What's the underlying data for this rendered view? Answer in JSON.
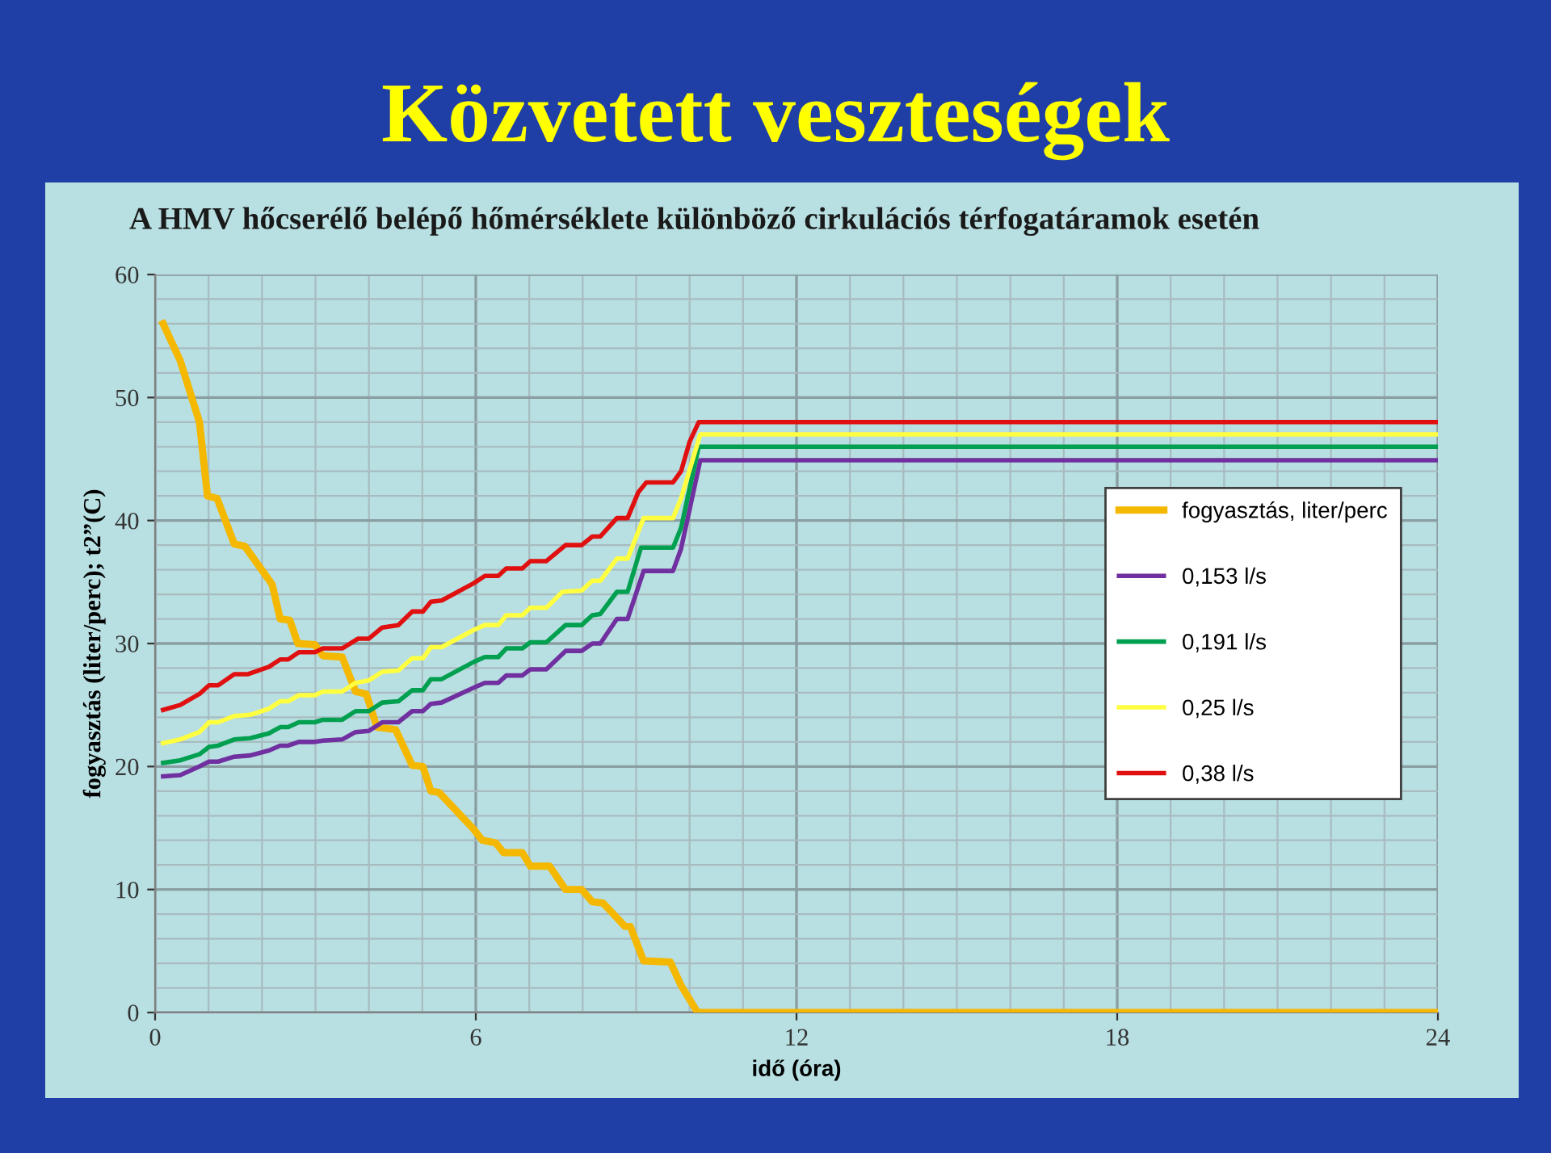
{
  "chart_data": {
    "type": "line",
    "title": "Közvetett veszteségek",
    "subtitle": "A HMV hőcserélő belépő hőmérséklete különböző cirkulációs térfogatáramok esetén",
    "xlabel": "idő (óra)",
    "ylabel": "fogyasztás (liter/perc); t2”(C)",
    "xlim": [
      0,
      24
    ],
    "xticks": [
      0,
      6,
      12,
      18,
      24
    ],
    "ylim": [
      0,
      60
    ],
    "yticks": [
      0,
      10,
      20,
      30,
      40,
      50,
      60
    ],
    "grid": true,
    "legend": "right",
    "marker": "none",
    "line_style": "solid",
    "series": [
      {
        "name": "fogyasztás, liter/perc",
        "color": "#f5b800",
        "x": [
          0.15,
          0.47,
          0.83,
          0.98,
          1.16,
          1.48,
          1.68,
          2.19,
          2.34,
          2.52,
          2.67,
          2.99,
          3.14,
          3.5,
          3.75,
          3.95,
          4.15,
          4.5,
          4.81,
          5.01,
          5.16,
          5.31,
          5.96,
          6.12,
          6.37,
          6.52,
          6.87,
          7.02,
          7.38,
          7.68,
          7.98,
          8.18,
          8.38,
          8.79,
          8.89,
          9.14,
          9.64,
          9.84,
          10.15,
          24
        ],
        "values": [
          56.0,
          53.0,
          48.0,
          42.0,
          41.8,
          38.1,
          37.9,
          34.8,
          32.0,
          31.9,
          30.0,
          29.9,
          29.0,
          28.9,
          26.1,
          25.9,
          23.2,
          23.0,
          20.1,
          20.0,
          18.0,
          17.9,
          14.9,
          14.0,
          13.8,
          13.0,
          13.0,
          11.9,
          11.9,
          10.0,
          10.0,
          9.0,
          8.9,
          7.0,
          7.0,
          4.2,
          4.1,
          2.2,
          0,
          0
        ]
      },
      {
        "name": "0,153 l/s",
        "color": "#7030a0",
        "x": [
          0.15,
          0.47,
          0.83,
          1.01,
          1.18,
          1.48,
          1.78,
          2.13,
          2.34,
          2.49,
          2.69,
          2.99,
          3.14,
          3.5,
          3.75,
          4.0,
          4.25,
          4.55,
          4.81,
          5.01,
          5.16,
          5.36,
          5.96,
          6.17,
          6.42,
          6.57,
          6.87,
          7.02,
          7.32,
          7.68,
          7.98,
          8.18,
          8.33,
          8.64,
          8.84,
          9.14,
          9.69,
          9.84,
          10.2,
          24
        ],
        "values": [
          19.2,
          19.3,
          20.0,
          20.4,
          20.4,
          20.8,
          20.9,
          21.3,
          21.7,
          21.7,
          22.0,
          22.0,
          22.1,
          22.2,
          22.8,
          22.9,
          23.6,
          23.6,
          24.5,
          24.5,
          25.1,
          25.2,
          26.4,
          26.8,
          26.8,
          27.4,
          27.4,
          27.9,
          27.9,
          29.4,
          29.4,
          30.0,
          30.0,
          32.0,
          32.0,
          35.9,
          35.9,
          37.7,
          44.9,
          44.9
        ]
      },
      {
        "name": "0,191 l/s",
        "color": "#00a050",
        "x": [
          0.15,
          0.47,
          0.83,
          1.01,
          1.18,
          1.48,
          1.78,
          2.13,
          2.34,
          2.49,
          2.69,
          2.99,
          3.14,
          3.5,
          3.75,
          4.0,
          4.25,
          4.55,
          4.81,
          5.01,
          5.16,
          5.36,
          5.96,
          6.17,
          6.42,
          6.57,
          6.87,
          7.02,
          7.32,
          7.68,
          7.98,
          8.18,
          8.33,
          8.64,
          8.84,
          9.09,
          9.69,
          9.84,
          10.17,
          24
        ],
        "values": [
          20.3,
          20.5,
          21.0,
          21.6,
          21.7,
          22.2,
          22.3,
          22.7,
          23.2,
          23.2,
          23.6,
          23.6,
          23.8,
          23.8,
          24.5,
          24.5,
          25.2,
          25.3,
          26.2,
          26.2,
          27.1,
          27.1,
          28.5,
          28.9,
          28.9,
          29.6,
          29.6,
          30.1,
          30.1,
          31.5,
          31.5,
          32.3,
          32.4,
          34.2,
          34.2,
          37.8,
          37.8,
          39.4,
          46.0,
          46.0
        ]
      },
      {
        "name": "0,25 l/s",
        "color": "#ffff40",
        "x": [
          0.15,
          0.47,
          0.83,
          1.01,
          1.18,
          1.48,
          1.78,
          2.13,
          2.34,
          2.49,
          2.69,
          2.99,
          3.14,
          3.5,
          3.75,
          4.0,
          4.25,
          4.55,
          4.81,
          5.01,
          5.16,
          5.36,
          5.96,
          6.17,
          6.42,
          6.57,
          6.87,
          7.02,
          7.32,
          7.62,
          7.98,
          8.18,
          8.33,
          8.64,
          8.84,
          9.14,
          9.69,
          9.84,
          10.2,
          24
        ],
        "values": [
          21.9,
          22.2,
          22.8,
          23.6,
          23.6,
          24.1,
          24.2,
          24.7,
          25.3,
          25.3,
          25.8,
          25.8,
          26.1,
          26.1,
          26.8,
          27.0,
          27.7,
          27.8,
          28.8,
          28.8,
          29.7,
          29.7,
          31.1,
          31.5,
          31.5,
          32.3,
          32.3,
          32.9,
          32.9,
          34.2,
          34.3,
          35.1,
          35.1,
          36.9,
          36.9,
          40.2,
          40.2,
          41.8,
          47.0,
          47.0
        ]
      },
      {
        "name": "0,38 l/s",
        "color": "#e01010",
        "x": [
          0.15,
          0.47,
          0.83,
          1.01,
          1.18,
          1.48,
          1.73,
          2.13,
          2.34,
          2.49,
          2.69,
          2.99,
          3.14,
          3.5,
          3.8,
          4.0,
          4.25,
          4.55,
          4.81,
          5.01,
          5.16,
          5.36,
          5.96,
          6.17,
          6.42,
          6.57,
          6.87,
          7.02,
          7.32,
          7.68,
          7.98,
          8.18,
          8.33,
          8.64,
          8.84,
          9.04,
          9.19,
          9.69,
          9.84,
          10.0,
          10.17,
          24
        ],
        "values": [
          24.6,
          25.0,
          25.9,
          26.6,
          26.6,
          27.5,
          27.5,
          28.1,
          28.7,
          28.7,
          29.3,
          29.3,
          29.6,
          29.6,
          30.4,
          30.4,
          31.3,
          31.5,
          32.6,
          32.6,
          33.4,
          33.5,
          34.9,
          35.5,
          35.5,
          36.1,
          36.1,
          36.7,
          36.7,
          38.0,
          38.0,
          38.7,
          38.7,
          40.2,
          40.2,
          42.3,
          43.1,
          43.1,
          44.0,
          46.4,
          48.0,
          48.0
        ]
      }
    ]
  }
}
